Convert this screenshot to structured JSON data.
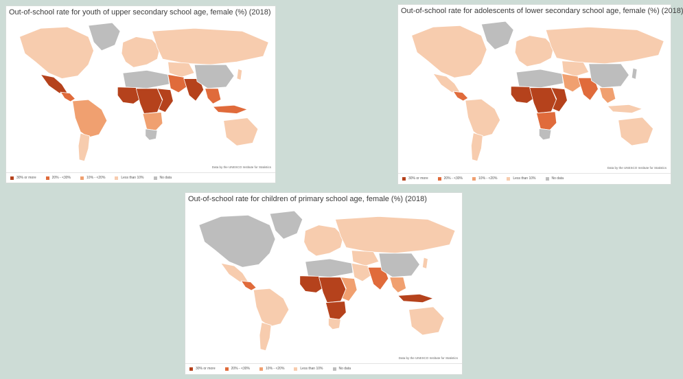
{
  "colors": {
    "c1": "#b5421c",
    "c2": "#e06b3b",
    "c3": "#f0a070",
    "c4": "#f7ccae",
    "nodata": "#bdbdbd"
  },
  "legend": [
    {
      "label": "30% or more",
      "color": "#b5421c"
    },
    {
      "label": "20% - <30%",
      "color": "#e06b3b"
    },
    {
      "label": "10% - <20%",
      "color": "#f0a070"
    },
    {
      "label": "Less than 10%",
      "color": "#f7ccae"
    },
    {
      "label": "No data",
      "color": "#bdbdbd"
    }
  ],
  "source": "Data by the UNESCO Institute for Statistics",
  "maps": [
    {
      "title": "Out-of-school rate for youth of upper secondary school age, female (%) (2018)",
      "fills": {
        "greenland": "#bdbdbd",
        "northAmerica": "#f7ccae",
        "mexico": "#b5421c",
        "centralAmerica": "#e06b3b",
        "southAmerica": "#f0a070",
        "southernCone": "#f7ccae",
        "europe": "#f7ccae",
        "russia": "#f7ccae",
        "northAfrica": "#bdbdbd",
        "westAfrica": "#b5421c",
        "centralAfrica": "#b5421c",
        "eastAfrica": "#b5421c",
        "southernAfrica": "#f0a070",
        "southAfrica": "#bdbdbd",
        "middleEast": "#e06b3b",
        "southAsia": "#b5421c",
        "china": "#bdbdbd",
        "southeastAsia": "#e06b3b",
        "indonesia": "#e06b3b",
        "australia": "#f7ccae",
        "japan": "#f7ccae",
        "centralAsia": "#f7ccae"
      }
    },
    {
      "title": "Out-of-school rate for adolescents of lower secondary school age, female (%) (2018)",
      "fills": {
        "greenland": "#bdbdbd",
        "northAmerica": "#f7ccae",
        "mexico": "#f7ccae",
        "centralAmerica": "#e06b3b",
        "southAmerica": "#f7ccae",
        "southernCone": "#f7ccae",
        "europe": "#f7ccae",
        "russia": "#f7ccae",
        "northAfrica": "#bdbdbd",
        "westAfrica": "#b5421c",
        "centralAfrica": "#b5421c",
        "eastAfrica": "#b5421c",
        "southernAfrica": "#e06b3b",
        "southAfrica": "#bdbdbd",
        "middleEast": "#f0a070",
        "southAsia": "#e06b3b",
        "china": "#bdbdbd",
        "southeastAsia": "#f0a070",
        "indonesia": "#f7ccae",
        "australia": "#f7ccae",
        "japan": "#bdbdbd",
        "centralAsia": "#f7ccae"
      }
    },
    {
      "title": "Out-of-school rate for children of primary school age, female (%) (2018)",
      "fills": {
        "greenland": "#bdbdbd",
        "northAmerica": "#bdbdbd",
        "mexico": "#f7ccae",
        "centralAmerica": "#e06b3b",
        "southAmerica": "#f7ccae",
        "southernCone": "#f7ccae",
        "europe": "#f7ccae",
        "russia": "#f7ccae",
        "northAfrica": "#bdbdbd",
        "westAfrica": "#b5421c",
        "centralAfrica": "#b5421c",
        "eastAfrica": "#f0a070",
        "southernAfrica": "#b5421c",
        "southAfrica": "#f7ccae",
        "middleEast": "#f7ccae",
        "southAsia": "#e06b3b",
        "china": "#bdbdbd",
        "southeastAsia": "#f0a070",
        "indonesia": "#b5421c",
        "australia": "#f7ccae",
        "japan": "#f7ccae",
        "centralAsia": "#f7ccae"
      }
    }
  ]
}
